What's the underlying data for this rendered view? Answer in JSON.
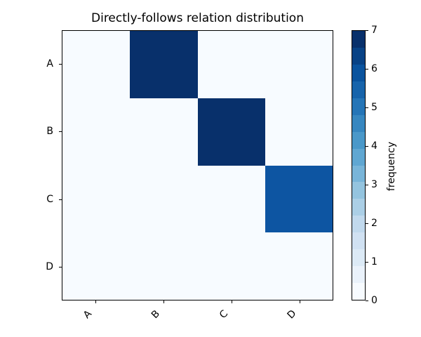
{
  "chart_data": {
    "type": "heatmap",
    "title": "Directly-follows relation distribution",
    "rows": [
      "A",
      "B",
      "C",
      "D"
    ],
    "cols": [
      "A",
      "B",
      "C",
      "D"
    ],
    "matrix": [
      [
        0,
        7,
        0,
        0
      ],
      [
        0,
        0,
        7,
        0
      ],
      [
        0,
        0,
        0,
        6
      ],
      [
        0,
        0,
        0,
        0
      ]
    ],
    "vmin": 0,
    "vmax": 7,
    "colorbar_label": "frequency",
    "colorbar_ticks": [
      0,
      1,
      2,
      3,
      4,
      5,
      6,
      7
    ],
    "colormap": "Blues",
    "colorbar_levels": 16,
    "x_tick_rotation_deg": 45,
    "legend_position": "right-colorbar",
    "grid": false
  },
  "colors": {
    "figure_background": "#ffffff",
    "axes_background": "#f7fbff",
    "frame": "#000000",
    "text": "#000000",
    "value_colors": {
      "0": "#f7fbff",
      "6": "#0d55a2",
      "7": "#08306b"
    },
    "blues16": [
      "#f7fbff",
      "#eaf2fb",
      "#dceaf6",
      "#d0e1f2",
      "#c1d9ed",
      "#abcfe6",
      "#94c4df",
      "#79b5d9",
      "#60a7d2",
      "#4a98c9",
      "#3787c0",
      "#2575b7",
      "#1764ab",
      "#0a539e",
      "#084285",
      "#08306b"
    ]
  }
}
